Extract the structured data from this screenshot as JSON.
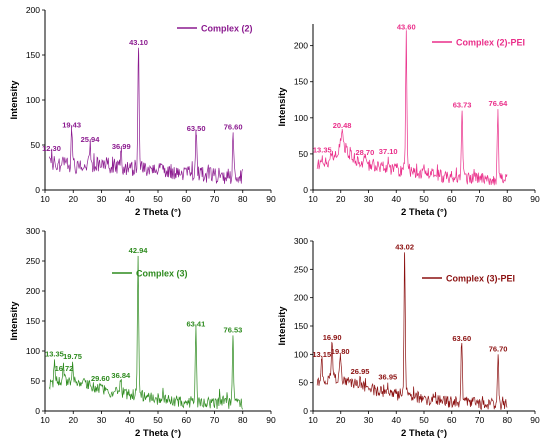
{
  "chart_data": [
    {
      "type": "line",
      "legend": "Complex (2)",
      "color": "#8b1a8f",
      "xlabel": "2 Theta (°)",
      "ylabel": "Intensity",
      "xlim": [
        10,
        90
      ],
      "ylim": [
        0,
        200
      ],
      "xticks": [
        10,
        20,
        30,
        40,
        50,
        60,
        70,
        80,
        90
      ],
      "yticks": [
        0,
        50,
        100,
        150,
        200
      ],
      "baseline": {
        "x": [
          10,
          20,
          30,
          40,
          50,
          60,
          70,
          80
        ],
        "y": [
          30,
          27,
          28,
          25,
          22,
          18,
          16,
          15
        ]
      },
      "noise": 9,
      "peaks": [
        {
          "label": "12.30",
          "x": 12.3,
          "y": 40
        },
        {
          "label": "19.43",
          "x": 19.43,
          "y": 66
        },
        {
          "label": "25.94",
          "x": 25.94,
          "y": 50
        },
        {
          "label": "36.99",
          "x": 36.99,
          "y": 42
        },
        {
          "label": "43.10",
          "x": 43.1,
          "y": 158
        },
        {
          "label": "63.50",
          "x": 63.5,
          "y": 62
        },
        {
          "label": "76.60",
          "x": 76.6,
          "y": 64
        }
      ]
    },
    {
      "type": "line",
      "legend": "Complex (2)-PEI",
      "color": "#ea2f8a",
      "xlabel": "2 Theta (°)",
      "ylabel": "Intensity",
      "xlim": [
        10,
        90
      ],
      "ylim": [
        0,
        230
      ],
      "xticks": [
        10,
        20,
        30,
        40,
        50,
        60,
        70,
        80,
        90
      ],
      "yticks": [
        0,
        50,
        100,
        150,
        200
      ],
      "baseline": {
        "x": [
          10,
          15,
          18,
          20.5,
          23,
          27,
          35,
          45,
          60,
          80
        ],
        "y": [
          32,
          38,
          50,
          65,
          52,
          38,
          32,
          25,
          18,
          14
        ]
      },
      "noise": 9,
      "peaks": [
        {
          "label": "13.35",
          "x": 13.35,
          "y": 48
        },
        {
          "label": "20.48",
          "x": 20.48,
          "y": 82
        },
        {
          "label": "28.70",
          "x": 28.7,
          "y": 44
        },
        {
          "label": "37.10",
          "x": 37.1,
          "y": 46
        },
        {
          "label": "43.60",
          "x": 43.6,
          "y": 218
        },
        {
          "label": "63.73",
          "x": 63.73,
          "y": 110
        },
        {
          "label": "76.64",
          "x": 76.64,
          "y": 112
        }
      ]
    },
    {
      "type": "line",
      "legend": "Complex (3)",
      "color": "#2e8b1f",
      "xlabel": "2 Theta (°)",
      "ylabel": "Intensity",
      "xlim": [
        10,
        90
      ],
      "ylim": [
        0,
        300
      ],
      "xticks": [
        10,
        20,
        30,
        40,
        50,
        60,
        70,
        80,
        90
      ],
      "yticks": [
        0,
        50,
        100,
        150,
        200,
        250,
        300
      ],
      "baseline": {
        "x": [
          10,
          15,
          20,
          25,
          30,
          40,
          50,
          60,
          80
        ],
        "y": [
          40,
          50,
          52,
          42,
          35,
          28,
          20,
          15,
          12
        ]
      },
      "noise": 10,
      "peaks": [
        {
          "label": "13.35",
          "x": 13.35,
          "y": 86
        },
        {
          "label": "16.72",
          "x": 16.72,
          "y": 62
        },
        {
          "label": "19.75",
          "x": 19.75,
          "y": 82
        },
        {
          "label": "29.60",
          "x": 29.6,
          "y": 45
        },
        {
          "label": "36.84",
          "x": 36.84,
          "y": 50
        },
        {
          "label": "42.94",
          "x": 42.94,
          "y": 258
        },
        {
          "label": "63.41",
          "x": 63.41,
          "y": 136
        },
        {
          "label": "76.53",
          "x": 76.53,
          "y": 126
        }
      ]
    },
    {
      "type": "line",
      "legend": "Complex (3)-PEI",
      "color": "#8b1010",
      "xlabel": "2 Theta (°)",
      "ylabel": "Intensity",
      "xlim": [
        10,
        90
      ],
      "ylim": [
        0,
        300
      ],
      "xticks": [
        10,
        20,
        30,
        40,
        50,
        60,
        70,
        80,
        90
      ],
      "yticks": [
        0,
        50,
        100,
        150,
        200,
        250,
        300
      ],
      "baseline": {
        "x": [
          10,
          15,
          20,
          25,
          30,
          40,
          50,
          60,
          80
        ],
        "y": [
          45,
          55,
          60,
          48,
          38,
          30,
          22,
          16,
          12
        ]
      },
      "noise": 11,
      "peaks": [
        {
          "label": "13.15",
          "x": 13.15,
          "y": 90
        },
        {
          "label": "16.90",
          "x": 16.9,
          "y": 120
        },
        {
          "label": "19.80",
          "x": 19.8,
          "y": 95
        },
        {
          "label": "26.95",
          "x": 26.95,
          "y": 60
        },
        {
          "label": "36.95",
          "x": 36.95,
          "y": 50
        },
        {
          "label": "43.02",
          "x": 43.02,
          "y": 280
        },
        {
          "label": "63.60",
          "x": 63.6,
          "y": 118
        },
        {
          "label": "76.70",
          "x": 76.7,
          "y": 100
        }
      ]
    }
  ]
}
